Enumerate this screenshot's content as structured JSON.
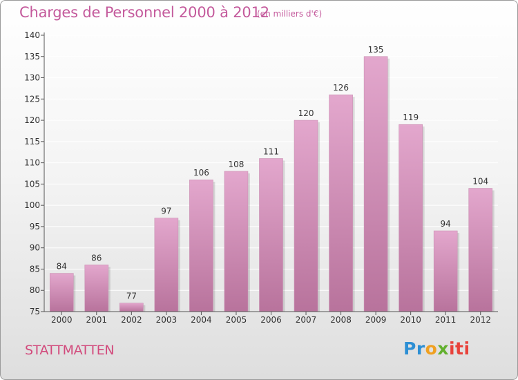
{
  "title": "Charges de Personnel 2000 à 2012",
  "subtitle": "(en milliers d'€)",
  "commune": "STATTMATTEN",
  "logo": {
    "part1": "Pr",
    "part2": "o",
    "part3": "x",
    "part4": "iti"
  },
  "colors": {
    "bar_top": "#e3a7cd",
    "bar_bottom": "#b8739c",
    "title": "#c45a9c",
    "commune": "#d24a7c",
    "grid": "#ffffff"
  },
  "chart_data": {
    "type": "bar",
    "categories": [
      "2000",
      "2001",
      "2002",
      "2003",
      "2004",
      "2005",
      "2006",
      "2007",
      "2008",
      "2009",
      "2010",
      "2011",
      "2012"
    ],
    "values": [
      84,
      86,
      77,
      97,
      106,
      108,
      111,
      120,
      126,
      135,
      119,
      94,
      104
    ],
    "yticks": [
      "75",
      "80",
      "85",
      "90",
      "95",
      "100",
      "105",
      "110",
      "115",
      "120",
      "125",
      "130",
      "135",
      "140"
    ],
    "ylim": [
      75,
      140
    ],
    "grid": true,
    "title": "Charges de Personnel 2000 à 2012",
    "xlabel": "",
    "ylabel": ""
  }
}
